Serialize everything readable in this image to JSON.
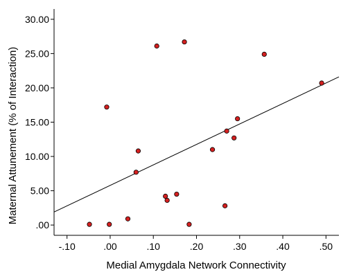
{
  "chart_data": {
    "type": "scatter",
    "title": "",
    "xlabel": "Medial Amygdala Network Connectivity",
    "ylabel": "Maternal Attunement (% of Interaction)",
    "xlim": [
      -0.13,
      0.53
    ],
    "ylim": [
      -1.5,
      31.5
    ],
    "x_ticks": [
      -0.1,
      0.0,
      0.1,
      0.2,
      0.3,
      0.4,
      0.5
    ],
    "x_tick_labels": [
      "-.10",
      ".00",
      ".10",
      ".20",
      ".30",
      ".40",
      ".50"
    ],
    "y_ticks": [
      0,
      5,
      10,
      15,
      20,
      25,
      30
    ],
    "y_tick_labels": [
      ".00",
      "5.00",
      "10.00",
      "15.00",
      "20.00",
      "25.00",
      "30.00"
    ],
    "grid": false,
    "marker_color": "#d42020",
    "series": [
      {
        "points": [
          {
            "x": -0.048,
            "y": 0.1
          },
          {
            "x": -0.002,
            "y": 0.1
          },
          {
            "x": 0.041,
            "y": 0.9
          },
          {
            "x": -0.008,
            "y": 17.2
          },
          {
            "x": 0.06,
            "y": 7.7
          },
          {
            "x": 0.065,
            "y": 10.8
          },
          {
            "x": 0.108,
            "y": 26.1
          },
          {
            "x": 0.128,
            "y": 4.2
          },
          {
            "x": 0.132,
            "y": 3.6
          },
          {
            "x": 0.154,
            "y": 4.5
          },
          {
            "x": 0.172,
            "y": 26.7
          },
          {
            "x": 0.183,
            "y": 0.1
          },
          {
            "x": 0.237,
            "y": 11.0
          },
          {
            "x": 0.266,
            "y": 2.8
          },
          {
            "x": 0.27,
            "y": 13.7
          },
          {
            "x": 0.287,
            "y": 12.7
          },
          {
            "x": 0.295,
            "y": 15.5
          },
          {
            "x": 0.357,
            "y": 24.9
          },
          {
            "x": 0.49,
            "y": 20.7
          }
        ]
      }
    ],
    "fit_line": {
      "x": [
        -0.13,
        0.53
      ],
      "y": [
        1.9,
        21.6
      ]
    }
  }
}
